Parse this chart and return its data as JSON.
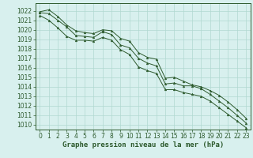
{
  "title": "Graphe pression niveau de la mer (hPa)",
  "bg_color": "#d8f0ee",
  "grid_color": "#b0d8d0",
  "line_color": "#2d5a2d",
  "spine_color": "#2d5a2d",
  "xlim": [
    -0.5,
    23.5
  ],
  "ylim": [
    1009.5,
    1022.8
  ],
  "xticks": [
    0,
    1,
    2,
    3,
    4,
    5,
    6,
    7,
    8,
    9,
    10,
    11,
    12,
    13,
    14,
    15,
    16,
    17,
    18,
    19,
    20,
    21,
    22,
    23
  ],
  "yticks": [
    1010,
    1011,
    1012,
    1013,
    1014,
    1015,
    1016,
    1017,
    1018,
    1019,
    1020,
    1021,
    1022
  ],
  "x": [
    0,
    1,
    2,
    3,
    4,
    5,
    6,
    7,
    8,
    9,
    10,
    11,
    12,
    13,
    14,
    15,
    16,
    17,
    18,
    19,
    20,
    21,
    22,
    23
  ],
  "y_main": [
    1021.8,
    1021.7,
    1021.0,
    1020.3,
    1019.4,
    1019.3,
    1019.2,
    1019.8,
    1019.5,
    1018.4,
    1018.1,
    1017.0,
    1016.5,
    1016.2,
    1014.3,
    1014.4,
    1014.1,
    1014.1,
    1013.8,
    1013.2,
    1012.5,
    1011.8,
    1011.0,
    1010.2
  ],
  "y_max": [
    1021.9,
    1022.1,
    1021.4,
    1020.5,
    1019.9,
    1019.7,
    1019.6,
    1020.0,
    1019.9,
    1019.1,
    1018.8,
    1017.6,
    1017.1,
    1016.9,
    1014.9,
    1015.0,
    1014.6,
    1014.2,
    1014.0,
    1013.6,
    1013.1,
    1012.4,
    1011.6,
    1010.7
  ],
  "y_min": [
    1021.5,
    1021.0,
    1020.2,
    1019.3,
    1018.9,
    1018.9,
    1018.8,
    1019.2,
    1018.9,
    1017.9,
    1017.4,
    1016.1,
    1015.7,
    1015.4,
    1013.7,
    1013.7,
    1013.4,
    1013.2,
    1013.0,
    1012.5,
    1011.8,
    1011.1,
    1010.4,
    1009.7
  ],
  "tick_labelsize": 5.5,
  "xlabel_fontsize": 6.5
}
